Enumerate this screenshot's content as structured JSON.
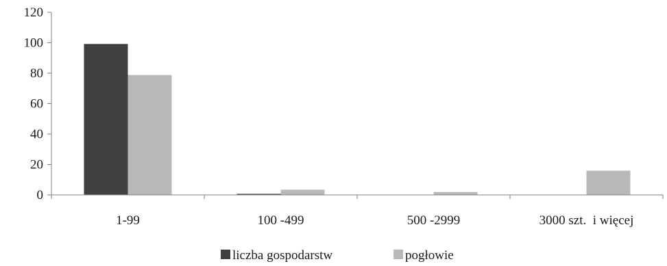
{
  "chart_data": {
    "type": "bar",
    "categories": [
      "1-99",
      "100 -499",
      "500 -2999",
      "3000 szt.  i więcej"
    ],
    "series": [
      {
        "name": "liczba gospodarstw",
        "values": [
          99.2,
          0.7,
          0.1,
          0.0
        ],
        "color": "#404040"
      },
      {
        "name": "pogłowie",
        "values": [
          78.8,
          3.4,
          1.9,
          15.9
        ],
        "color": "#b8b8b8"
      }
    ],
    "yticks": [
      0,
      20,
      40,
      60,
      80,
      100,
      120
    ],
    "ylim": [
      0,
      120
    ],
    "title": "",
    "xlabel": "",
    "ylabel": "",
    "grid": false,
    "legend_position": "bottom-center"
  }
}
